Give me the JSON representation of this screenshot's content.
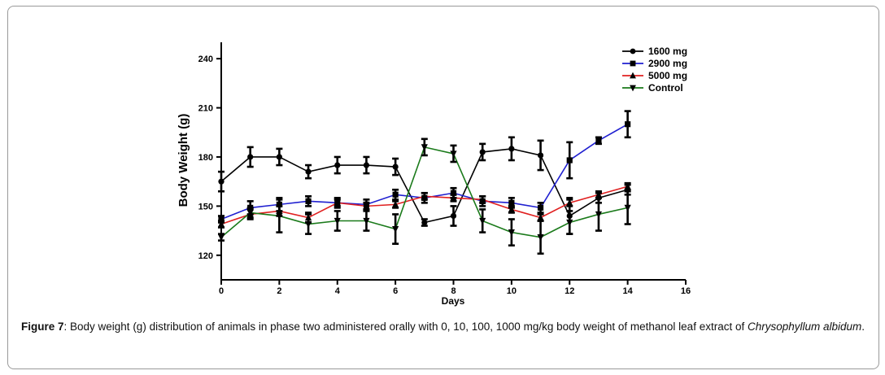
{
  "chart_data": {
    "type": "line",
    "xlabel": "Days",
    "ylabel": "Body Weight (g)",
    "xlim": [
      0,
      16
    ],
    "ylim": [
      105,
      250
    ],
    "xticks": [
      0,
      2,
      4,
      6,
      8,
      10,
      12,
      14,
      16
    ],
    "yticks": [
      120,
      150,
      180,
      210,
      240
    ],
    "legend_position": "top-right",
    "series": [
      {
        "name": "1600 mg",
        "color": "#000000",
        "marker": "circle",
        "x": [
          0,
          1,
          2,
          3,
          4,
          5,
          6,
          7,
          8,
          9,
          10,
          11,
          12,
          13,
          14
        ],
        "y": [
          165,
          180,
          180,
          171,
          175,
          175,
          174,
          140,
          144,
          183,
          185,
          181,
          144,
          155,
          160
        ],
        "err": [
          6,
          6,
          5,
          4,
          5,
          5,
          5,
          2,
          6,
          5,
          7,
          9,
          11,
          3,
          3
        ]
      },
      {
        "name": "2900 mg",
        "color": "#1f1fd0",
        "marker": "square",
        "x": [
          0,
          1,
          2,
          3,
          4,
          5,
          6,
          7,
          8,
          9,
          10,
          11,
          12,
          13,
          14
        ],
        "y": [
          142,
          149,
          151,
          153,
          152,
          151,
          157,
          155,
          158,
          153,
          152,
          149,
          178,
          190,
          200
        ],
        "err": [
          2,
          4,
          4,
          3,
          3,
          3,
          3,
          3,
          3,
          3,
          3,
          3,
          11,
          2,
          8
        ]
      },
      {
        "name": "5000 mg",
        "color": "#e02020",
        "marker": "triangle-up",
        "x": [
          0,
          1,
          2,
          3,
          4,
          5,
          6,
          7,
          8,
          9,
          10,
          11,
          12,
          13,
          14
        ],
        "y": [
          139,
          145,
          147,
          143,
          152,
          150,
          151,
          156,
          155,
          154,
          148,
          143,
          152,
          157,
          162
        ],
        "err": [
          2,
          3,
          3,
          3,
          2,
          2,
          2,
          2,
          2,
          2,
          2,
          2,
          2,
          2,
          2
        ]
      },
      {
        "name": "Control",
        "color": "#1a7a1a",
        "marker": "triangle-down",
        "x": [
          0,
          1,
          2,
          3,
          4,
          5,
          6,
          7,
          8,
          9,
          10,
          11,
          12,
          13,
          14
        ],
        "y": [
          131,
          146,
          144,
          139,
          141,
          141,
          136,
          186,
          182,
          141,
          134,
          131,
          140,
          145,
          149
        ],
        "err": [
          2,
          3,
          10,
          6,
          6,
          6,
          9,
          5,
          5,
          7,
          8,
          10,
          7,
          10,
          10
        ]
      }
    ]
  },
  "caption": {
    "label": "Figure 7",
    "text_before": ": Body weight (g) distribution of animals in phase two administered orally with 0, 10, 100, 1000 mg/kg body weight of methanol leaf extract of ",
    "species": "Chrysophyllum albidum",
    "text_after": "."
  }
}
